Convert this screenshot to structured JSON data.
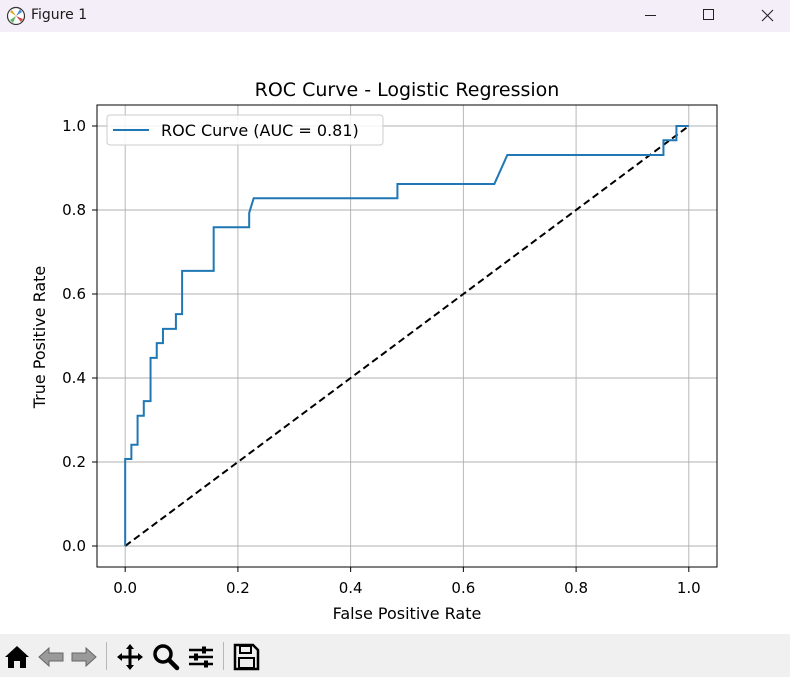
{
  "window": {
    "title": "Figure 1",
    "app_icon": "matplotlib-icon",
    "controls": [
      "minimize-icon",
      "maximize-icon",
      "close-icon"
    ]
  },
  "toolbar": {
    "buttons": [
      "home-icon",
      "back-arrow-icon",
      "forward-arrow-icon",
      "pan-move-icon",
      "zoom-magnifier-icon",
      "configure-subplots-icon",
      "save-floppy-icon"
    ]
  },
  "chart_data": {
    "type": "line",
    "title": "ROC Curve - Logistic Regression",
    "xlabel": "False Positive Rate",
    "ylabel": "True Positive Rate",
    "xlim": [
      -0.05,
      1.05
    ],
    "ylim": [
      -0.05,
      1.05
    ],
    "xticks": [
      "0.0",
      "0.2",
      "0.4",
      "0.6",
      "0.8",
      "1.0"
    ],
    "yticks": [
      "0.0",
      "0.2",
      "0.4",
      "0.6",
      "0.8",
      "1.0"
    ],
    "grid": true,
    "legend_position": "upper-left",
    "series": [
      {
        "name": "ROC Curve (AUC = 0.81)",
        "color": "#1f77b4",
        "style": "solid",
        "points": [
          [
            0.0,
            0.0
          ],
          [
            0.0,
            0.207
          ],
          [
            0.011,
            0.207
          ],
          [
            0.011,
            0.241
          ],
          [
            0.022,
            0.241
          ],
          [
            0.022,
            0.31
          ],
          [
            0.033,
            0.31
          ],
          [
            0.033,
            0.345
          ],
          [
            0.045,
            0.345
          ],
          [
            0.045,
            0.448
          ],
          [
            0.056,
            0.448
          ],
          [
            0.056,
            0.483
          ],
          [
            0.067,
            0.483
          ],
          [
            0.067,
            0.517
          ],
          [
            0.09,
            0.517
          ],
          [
            0.09,
            0.552
          ],
          [
            0.101,
            0.552
          ],
          [
            0.101,
            0.655
          ],
          [
            0.157,
            0.655
          ],
          [
            0.157,
            0.759
          ],
          [
            0.22,
            0.759
          ],
          [
            0.22,
            0.793
          ],
          [
            0.228,
            0.828
          ],
          [
            0.483,
            0.828
          ],
          [
            0.483,
            0.862
          ],
          [
            0.655,
            0.862
          ],
          [
            0.678,
            0.931
          ],
          [
            0.955,
            0.931
          ],
          [
            0.955,
            0.966
          ],
          [
            0.978,
            0.966
          ],
          [
            0.978,
            1.0
          ],
          [
            1.0,
            1.0
          ]
        ]
      },
      {
        "name": "",
        "color": "#000000",
        "style": "dashed",
        "points": [
          [
            0.0,
            0.0
          ],
          [
            1.0,
            1.0
          ]
        ]
      }
    ]
  }
}
